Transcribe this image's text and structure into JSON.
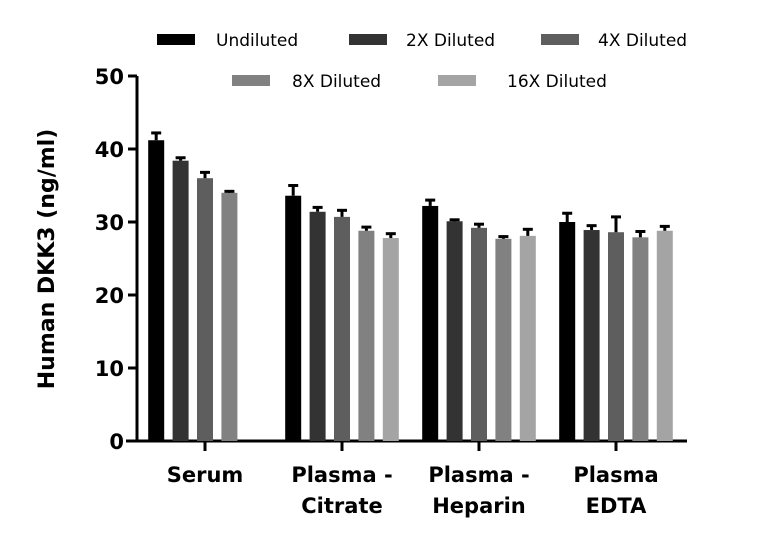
{
  "chart_data": {
    "type": "bar",
    "title": "",
    "xlabel": "",
    "ylabel": "Human DKK3 (ng/ml)",
    "ylim": [
      0,
      50
    ],
    "yticks": [
      0,
      10,
      20,
      30,
      40,
      50
    ],
    "grid": false,
    "legend_placement": "top",
    "error_bars": true,
    "categories": [
      [
        "Serum"
      ],
      [
        "Plasma -",
        "Citrate"
      ],
      [
        "Plasma -",
        "Heparin"
      ],
      [
        "Plasma",
        "EDTA"
      ]
    ],
    "series": [
      {
        "name": "Undiluted",
        "color": "#000000",
        "values": [
          41.2,
          33.6,
          32.2,
          30.0
        ],
        "errors": [
          1.0,
          1.4,
          0.8,
          1.2
        ]
      },
      {
        "name": "2X Diluted",
        "color": "#333333",
        "values": [
          38.4,
          31.4,
          30.1,
          28.9
        ],
        "errors": [
          0.4,
          0.6,
          0.2,
          0.6
        ]
      },
      {
        "name": "4X Diluted",
        "color": "#5e5e5e",
        "values": [
          36.0,
          30.7,
          29.2,
          28.6
        ],
        "errors": [
          0.8,
          0.9,
          0.5,
          2.1
        ]
      },
      {
        "name": "8X Diluted",
        "color": "#818181",
        "values": [
          34.0,
          28.8,
          27.7,
          27.9
        ],
        "errors": [
          0.2,
          0.5,
          0.3,
          0.8
        ]
      },
      {
        "name": "16X Diluted",
        "color": "#a4a4a4",
        "values": [
          null,
          27.8,
          28.1,
          28.8
        ],
        "errors": [
          null,
          0.6,
          0.9,
          0.6
        ]
      }
    ]
  }
}
